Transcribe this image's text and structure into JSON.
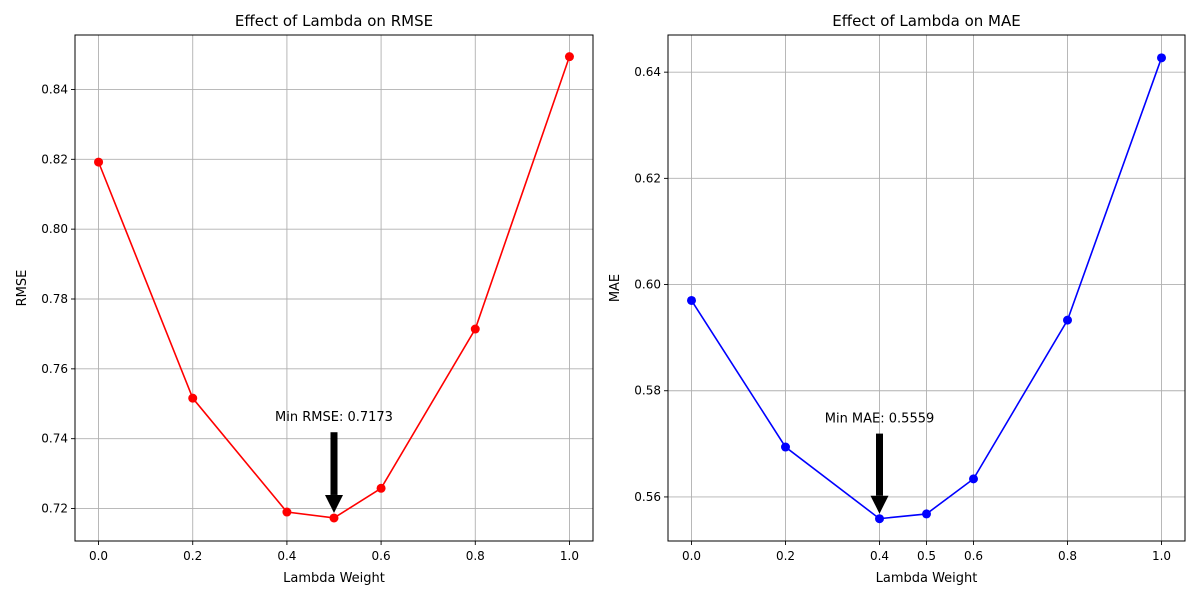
{
  "chart_data": [
    {
      "type": "line",
      "title": "Effect of Lambda on RMSE",
      "xlabel": "Lambda Weight",
      "ylabel": "RMSE",
      "xlim": [
        -0.05,
        1.05
      ],
      "ylim": [
        0.7107,
        0.8556
      ],
      "xticks": [
        "0.0",
        "0.2",
        "0.4",
        "0.6",
        "0.8",
        "1.0"
      ],
      "yticks": [
        "0.72",
        "0.74",
        "0.76",
        "0.78",
        "0.80",
        "0.82",
        "0.84"
      ],
      "grid": true,
      "color": "#ff0000",
      "series": [
        {
          "x": [
            0.0,
            0.2,
            0.4,
            0.5,
            0.6,
            0.8,
            1.0
          ],
          "y": [
            0.8192,
            0.7516,
            0.719,
            0.7173,
            0.7258,
            0.7714,
            0.8494
          ]
        }
      ],
      "annotation": {
        "text": "Min RMSE: 0.7173",
        "x": 0.5,
        "y": 0.7173,
        "text_y": 0.745
      }
    },
    {
      "type": "line",
      "title": "Effect of Lambda on MAE",
      "xlabel": "Lambda Weight",
      "ylabel": "MAE",
      "xlim": [
        -0.05,
        1.05
      ],
      "ylim": [
        0.5517,
        0.647
      ],
      "xticks": [
        "0.0",
        "0.2",
        "0.4",
        "0.5",
        "0.6",
        "0.8",
        "1.0"
      ],
      "yticks": [
        "0.56",
        "0.58",
        "0.60",
        "0.62",
        "0.64"
      ],
      "grid": true,
      "color": "#0000ff",
      "series": [
        {
          "x": [
            0.0,
            0.2,
            0.4,
            0.5,
            0.6,
            0.8,
            1.0
          ],
          "y": [
            0.597,
            0.5694,
            0.5559,
            0.5568,
            0.5634,
            0.5933,
            0.6427
          ]
        }
      ],
      "annotation": {
        "text": "Min MAE: 0.5559",
        "x": 0.4,
        "y": 0.5559,
        "text_y": 0.574
      }
    }
  ]
}
